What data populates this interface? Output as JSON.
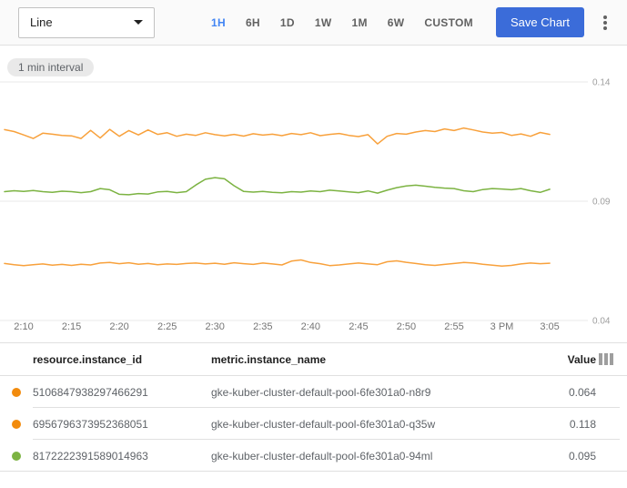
{
  "toolbar": {
    "chart_type_value": "Line",
    "time_ranges": [
      {
        "label": "1H",
        "active": true
      },
      {
        "label": "6H",
        "active": false
      },
      {
        "label": "1D",
        "active": false
      },
      {
        "label": "1W",
        "active": false
      },
      {
        "label": "1M",
        "active": false
      },
      {
        "label": "6W",
        "active": false
      },
      {
        "label": "CUSTOM",
        "active": false
      }
    ],
    "save_button_label": "Save Chart",
    "menu_icon": "vertical-dots-icon"
  },
  "chart": {
    "interval_chip": "1 min interval"
  },
  "colors": {
    "accent_blue": "#4285f4",
    "save_button_blue": "#3b6cd9",
    "series_orange": "#f8a13c",
    "series_green": "#7cb342",
    "dot_orange": "#f28b0d",
    "dot_green": "#7cb342",
    "gridline": "#e9e9e9",
    "axis_text": "#9e9e9e"
  },
  "chart_data": {
    "type": "line",
    "title": "",
    "xlabel": "",
    "ylabel": "",
    "x_interval": "1 min",
    "x_start": "2:08 PM",
    "x_end": "3:05 PM",
    "ylim": [
      0.04,
      0.14
    ],
    "grid": true,
    "legend_position": "table-below",
    "yticks": [
      {
        "label": "0.14",
        "value": 0.14
      },
      {
        "label": "0.09",
        "value": 0.09
      },
      {
        "label": "0.04",
        "value": 0.04
      }
    ],
    "xticks": [
      {
        "label": "2:10",
        "minute": 2
      },
      {
        "label": "2:15",
        "minute": 7
      },
      {
        "label": "2:20",
        "minute": 12
      },
      {
        "label": "2:25",
        "minute": 17
      },
      {
        "label": "2:30",
        "minute": 22
      },
      {
        "label": "2:35",
        "minute": 27
      },
      {
        "label": "2:40",
        "minute": 32
      },
      {
        "label": "2:45",
        "minute": 37
      },
      {
        "label": "2:50",
        "minute": 42
      },
      {
        "label": "2:55",
        "minute": 47
      },
      {
        "label": "3 PM",
        "minute": 52
      },
      {
        "label": "3:05",
        "minute": 57
      }
    ],
    "series": [
      {
        "name": "gke-kuber-cluster-default-pool-6fe301a0-q35w",
        "color": "#f8a13c",
        "current_value": 0.118,
        "values": [
          0.12,
          0.1192,
          0.1178,
          0.1163,
          0.1185,
          0.1181,
          0.1176,
          0.1174,
          0.1163,
          0.1197,
          0.1165,
          0.1201,
          0.1172,
          0.1196,
          0.1178,
          0.1199,
          0.118,
          0.1187,
          0.1172,
          0.1181,
          0.1176,
          0.1187,
          0.1179,
          0.1174,
          0.118,
          0.1173,
          0.1183,
          0.1177,
          0.1181,
          0.1175,
          0.1184,
          0.1179,
          0.1187,
          0.1175,
          0.118,
          0.1184,
          0.1176,
          0.1171,
          0.1179,
          0.114,
          0.1172,
          0.1184,
          0.1181,
          0.119,
          0.1196,
          0.1192,
          0.1203,
          0.1196,
          0.1207,
          0.1199,
          0.119,
          0.1185,
          0.1188,
          0.1176,
          0.1182,
          0.1172,
          0.1188,
          0.118
        ]
      },
      {
        "name": "gke-kuber-cluster-default-pool-6fe301a0-94ml",
        "color": "#7cb342",
        "current_value": 0.095,
        "values": [
          0.094,
          0.0944,
          0.0941,
          0.0945,
          0.094,
          0.0937,
          0.0942,
          0.094,
          0.0936,
          0.094,
          0.0953,
          0.0948,
          0.0929,
          0.0927,
          0.0932,
          0.093,
          0.0939,
          0.0941,
          0.0936,
          0.094,
          0.0968,
          0.0992,
          0.0999,
          0.0994,
          0.0965,
          0.0941,
          0.0938,
          0.0941,
          0.0937,
          0.0935,
          0.094,
          0.0938,
          0.0943,
          0.094,
          0.0946,
          0.0943,
          0.0939,
          0.0936,
          0.0943,
          0.0934,
          0.0946,
          0.0957,
          0.0964,
          0.0967,
          0.0963,
          0.0958,
          0.0955,
          0.0953,
          0.0944,
          0.094,
          0.0949,
          0.0953,
          0.0951,
          0.0948,
          0.0953,
          0.0944,
          0.0937,
          0.095
        ]
      },
      {
        "name": "gke-kuber-cluster-default-pool-6fe301a0-n8r9",
        "color": "#f8a13c",
        "current_value": 0.064,
        "values": [
          0.0639,
          0.0634,
          0.063,
          0.0634,
          0.0637,
          0.0632,
          0.0635,
          0.0631,
          0.0636,
          0.0633,
          0.0641,
          0.0643,
          0.0638,
          0.0642,
          0.0636,
          0.0639,
          0.0634,
          0.0637,
          0.0635,
          0.0639,
          0.0641,
          0.0637,
          0.064,
          0.0636,
          0.0642,
          0.0638,
          0.0635,
          0.0641,
          0.0637,
          0.0633,
          0.0649,
          0.0654,
          0.0643,
          0.0638,
          0.063,
          0.0633,
          0.0637,
          0.0641,
          0.0637,
          0.0634,
          0.0646,
          0.065,
          0.0644,
          0.0639,
          0.0634,
          0.0631,
          0.0635,
          0.0639,
          0.0643,
          0.0641,
          0.0636,
          0.0632,
          0.0628,
          0.0631,
          0.0637,
          0.0641,
          0.0638,
          0.064
        ]
      }
    ]
  },
  "table": {
    "columns": [
      "resource.instance_id",
      "metric.instance_name",
      "Value"
    ],
    "columns_icon": "view-columns-icon",
    "rows": [
      {
        "dot_color": "#f28b0d",
        "id": "5106847938297466291",
        "name": "gke-kuber-cluster-default-pool-6fe301a0-n8r9",
        "value": "0.064"
      },
      {
        "dot_color": "#f28b0d",
        "id": "6956796373952368051",
        "name": "gke-kuber-cluster-default-pool-6fe301a0-q35w",
        "value": "0.118"
      },
      {
        "dot_color": "#7cb342",
        "id": "8172222391589014963",
        "name": "gke-kuber-cluster-default-pool-6fe301a0-94ml",
        "value": "0.095"
      }
    ]
  }
}
